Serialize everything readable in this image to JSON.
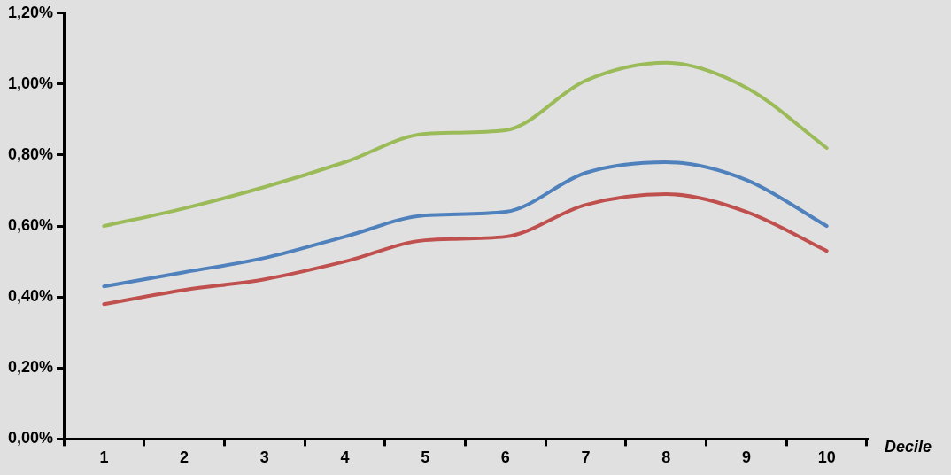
{
  "chart_data": {
    "type": "line",
    "xlabel": "Decile",
    "categories": [
      "1",
      "2",
      "3",
      "4",
      "5",
      "6",
      "7",
      "8",
      "9",
      "10"
    ],
    "series": [
      {
        "color": "#9bbb59",
        "values": [
          0.6,
          0.65,
          0.71,
          0.78,
          0.86,
          0.87,
          1.01,
          1.06,
          0.99,
          0.82
        ]
      },
      {
        "color": "#4f81bd",
        "values": [
          0.43,
          0.47,
          0.51,
          0.57,
          0.63,
          0.64,
          0.75,
          0.78,
          0.73,
          0.6
        ]
      },
      {
        "color": "#c0504d",
        "values": [
          0.38,
          0.42,
          0.45,
          0.5,
          0.56,
          0.57,
          0.66,
          0.69,
          0.64,
          0.53
        ]
      }
    ],
    "ylim": [
      0,
      1.2
    ],
    "yticks": [
      {
        "value": 0,
        "label": "0,00%"
      },
      {
        "value": 0.2,
        "label": "0,20%"
      },
      {
        "value": 0.4,
        "label": "0,40%"
      },
      {
        "value": 0.6,
        "label": "0,60%"
      },
      {
        "value": 0.8,
        "label": "0,80%"
      },
      {
        "value": 1.0,
        "label": "1,00%"
      },
      {
        "value": 1.2,
        "label": "1,20%"
      }
    ],
    "grid": false,
    "legend": false,
    "marker": "none",
    "line_style": "solid"
  }
}
